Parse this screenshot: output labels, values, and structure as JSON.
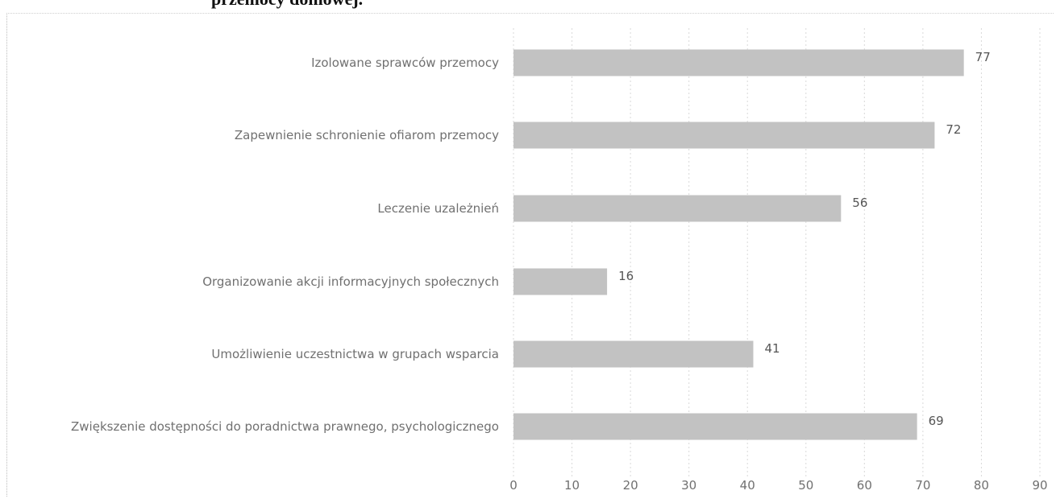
{
  "title_fragment": "przemocy domowej.",
  "chart_data": {
    "type": "bar",
    "orientation": "horizontal",
    "categories": [
      "Izolowane sprawców przemocy",
      "Zapewnienie schronienie ofiarom przemocy",
      "Leczenie uzależnień",
      "Organizowanie akcji informacyjnych społecznych",
      "Umożliwienie uczestnictwa w grupach wsparcia",
      "Zwiększenie dostępności do poradnictwa prawnego, psychologicznego"
    ],
    "values": [
      77,
      72,
      56,
      16,
      41,
      69
    ],
    "xlim": [
      0,
      90
    ],
    "xticks": [
      "0",
      "10",
      "20",
      "30",
      "40",
      "50",
      "60",
      "70",
      "80",
      "90"
    ],
    "grid": true,
    "bar_color": "#c2c2c2"
  }
}
